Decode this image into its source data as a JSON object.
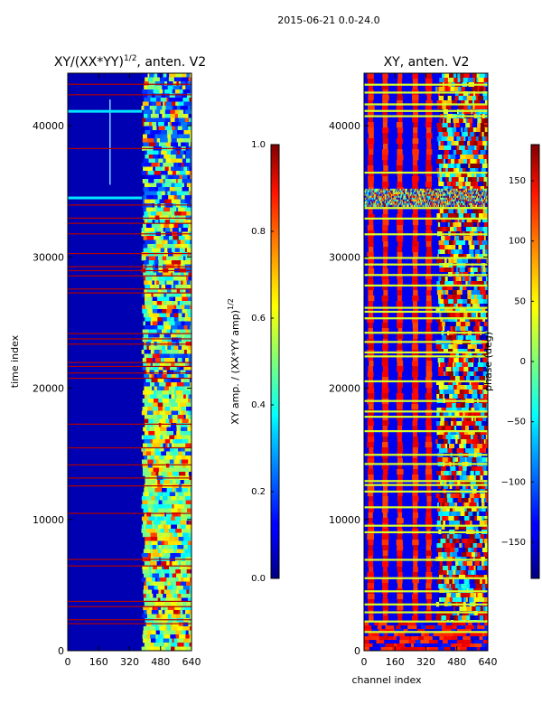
{
  "figure": {
    "suptitle": "2015-06-21 0.0-24.0"
  },
  "chart_data": [
    {
      "type": "heatmap",
      "title_main": "XY/(XX*YY)",
      "title_exponent": "1/2",
      "title_suffix": ", anten. V2",
      "xlabel": "",
      "ylabel": "time index",
      "xlim": [
        0,
        640
      ],
      "ylim": [
        0,
        44000
      ],
      "xticks": [
        0,
        160,
        320,
        480,
        640
      ],
      "yticks": [
        0,
        10000,
        20000,
        30000,
        40000
      ],
      "colorbar": {
        "label_main": "XY amp. / (XX*YY amp)",
        "label_exponent": "1/2",
        "range": [
          0.0,
          1.0
        ],
        "ticks": [
          "0.0",
          "0.2",
          "0.4",
          "0.6",
          "0.8",
          "1.0"
        ],
        "colormap": "jet"
      },
      "description_values": {
        "low_channel_region": [
          0,
          390
        ],
        "low_channel_typical_value": 0.05,
        "high_channel_region": [
          390,
          640
        ],
        "high_channel_typical_value": 0.45,
        "flagged_rows_value": 0.95
      }
    },
    {
      "type": "heatmap",
      "title_main": "XY, anten. V2",
      "xlabel": "channel index",
      "ylabel": "",
      "xlim": [
        0,
        640
      ],
      "ylim": [
        0,
        44000
      ],
      "xticks": [
        0,
        160,
        320,
        480,
        640
      ],
      "yticks": [
        0,
        10000,
        20000,
        30000,
        40000
      ],
      "colorbar": {
        "label": "phase (deg)",
        "range": [
          -180,
          180
        ],
        "ticks": [
          "−150",
          "−100",
          "−50",
          "0",
          "50",
          "100",
          "150"
        ],
        "colormap": "jet"
      },
      "description_values": {
        "stripe_centers_channel": [
          35,
          110,
          185,
          265,
          335
        ],
        "stripe_value_deg": 150,
        "between_stripe_value_deg": -140
      }
    }
  ]
}
